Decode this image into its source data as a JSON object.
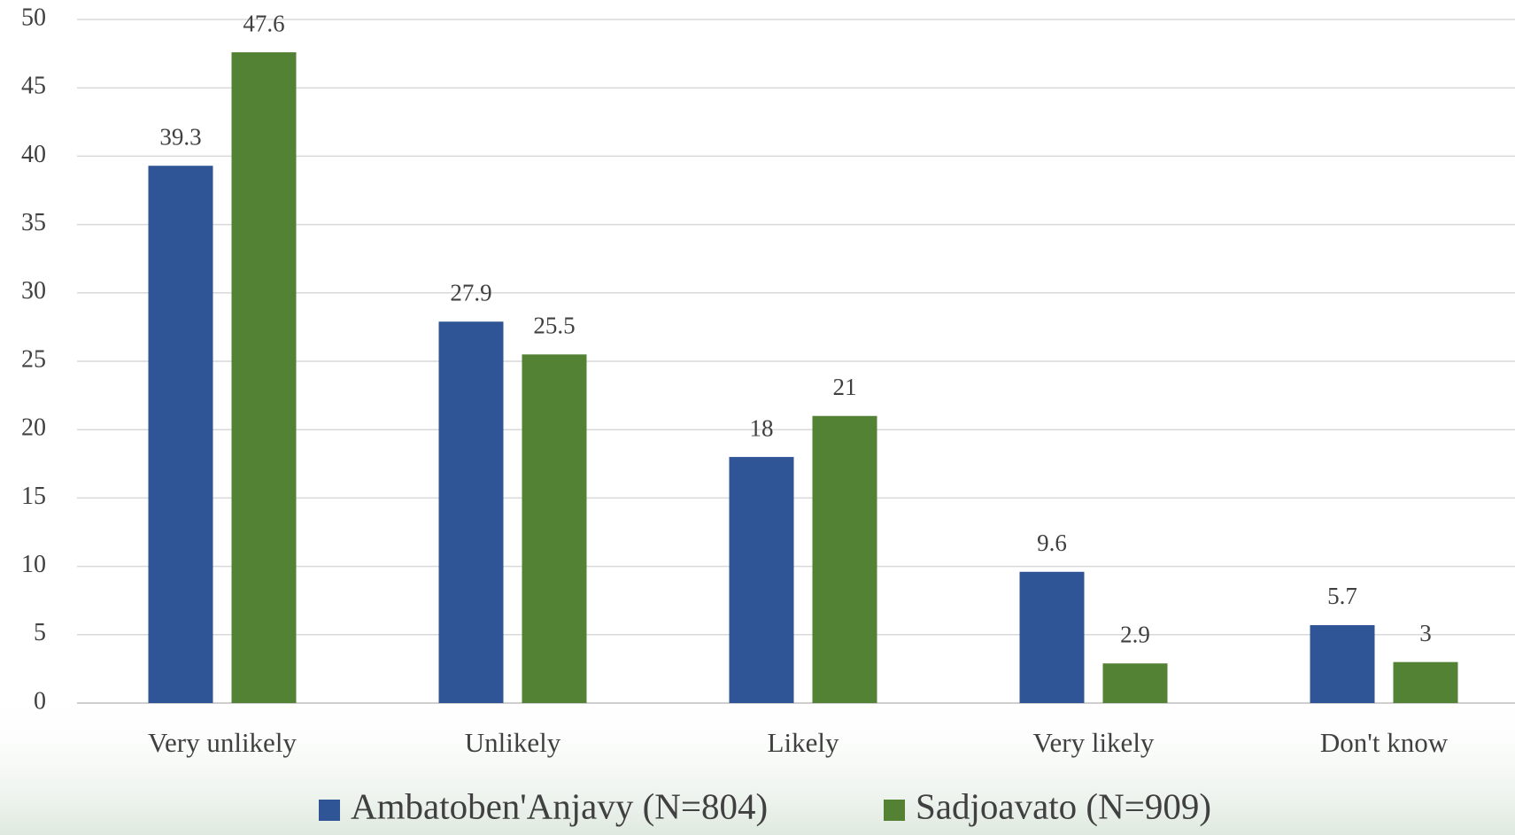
{
  "chart_data": {
    "type": "bar",
    "categories": [
      "Very unlikely",
      "Unlikely",
      "Likely",
      "Very likely",
      "Don't know"
    ],
    "series": [
      {
        "name": "Ambatoben'Anjavy (N=804)",
        "color": "#2f5597",
        "values": [
          39.3,
          27.9,
          18,
          9.6,
          5.7
        ]
      },
      {
        "name": "Sadjoavato (N=909)",
        "color": "#548235",
        "values": [
          47.6,
          25.5,
          21,
          2.9,
          3
        ]
      }
    ],
    "ylim": [
      0,
      50
    ],
    "yticks": [
      0,
      5,
      10,
      15,
      20,
      25,
      30,
      35,
      40,
      45,
      50
    ],
    "grid": true,
    "legend": "bottom"
  }
}
